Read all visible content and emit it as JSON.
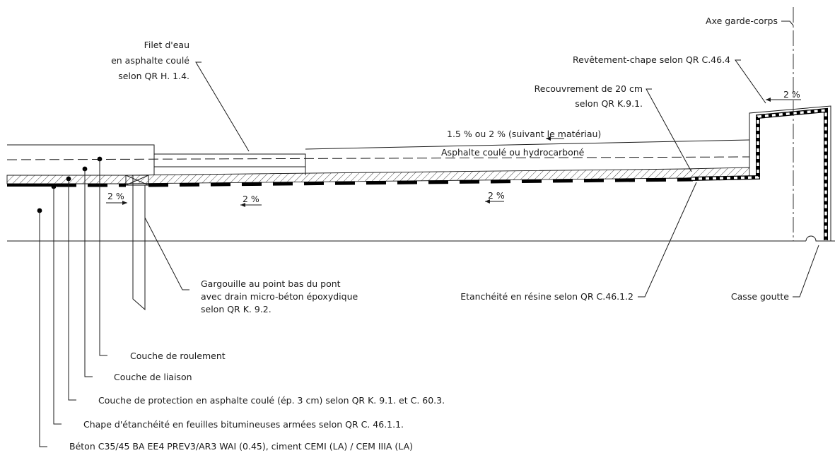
{
  "labels": {
    "axe_garde_corps": "Axe garde-corps",
    "revetement_chape": "Revêtement-chape selon QR C.46.4",
    "filet_line1": "Filet d'eau",
    "filet_line2": "en asphalte coulé",
    "filet_line3": "selon QR H. 1.4.",
    "recouvrement_line1": "Recouvrement de 20 cm",
    "recouvrement_line2": "selon QR K.9.1.",
    "pente_materiau": "1.5 % ou 2 % (suivant le matériau)",
    "asphalte_coule": "Asphalte coulé ou hydrocarboné",
    "gargouille_line1": "Gargouille au point bas du pont",
    "gargouille_line2": "avec drain micro-béton époxydique",
    "gargouille_line3": "selon QR K. 9.2.",
    "etancheite_resine": "Etanchéité en résine selon QR C.46.1.2",
    "casse_goutte": "Casse goutte",
    "couche_roulement": "Couche de roulement",
    "couche_liaison": "Couche de liaison",
    "couche_protection": "Couche de protection en asphalte coulé (ép. 3 cm) selon QR K. 9.1. et C. 60.3.",
    "chape_etancheite": "Chape d'étanchéité en feuilles bitumineuses armées selon QR C. 46.1.1.",
    "beton": "Béton C35/45 BA EE4 PREV3/AR3 WAI (0.45), ciment CEMI (LA) / CEM IIIA (LA)"
  },
  "slopes": {
    "slope_gargouille": "2 %",
    "slope_left": "2 %",
    "slope_mid": "2 %",
    "slope_curb": "2 %"
  }
}
